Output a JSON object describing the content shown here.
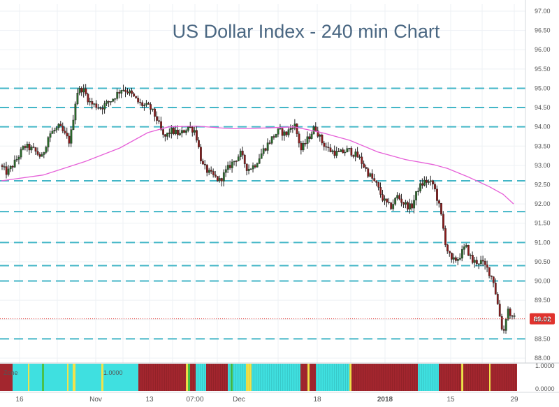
{
  "chart_data": {
    "type": "candlestick",
    "title": "US Dollar Index - 240 min Chart",
    "y_axis": {
      "ticks": [
        "97.00",
        "96.50",
        "96.00",
        "95.50",
        "95.00",
        "94.50",
        "94.00",
        "93.50",
        "93.00",
        "92.50",
        "92.00",
        "91.50",
        "91.00",
        "90.50",
        "90.00",
        "89.50",
        "89.00",
        "88.50",
        "88.00"
      ],
      "range": [
        88.0,
        97.0
      ],
      "position": "right"
    },
    "x_axis": {
      "ticks": [
        "16",
        "Nov",
        "13",
        "07:00",
        "Dec",
        "18",
        "2018",
        "15",
        "29"
      ]
    },
    "last_price": 89.02,
    "last_price_label": "89.02",
    "horizontal_levels": [
      95.0,
      94.5,
      94.0,
      92.6,
      91.8,
      91.0,
      90.4,
      90.0,
      88.5
    ],
    "price_path": [
      [
        0,
        93.0
      ],
      [
        10,
        92.8
      ],
      [
        22,
        93.1
      ],
      [
        35,
        93.5
      ],
      [
        48,
        93.4
      ],
      [
        60,
        93.2
      ],
      [
        70,
        93.8
      ],
      [
        85,
        94.0
      ],
      [
        100,
        93.6
      ],
      [
        110,
        94.9
      ],
      [
        118,
        95.0
      ],
      [
        130,
        94.6
      ],
      [
        145,
        94.5
      ],
      [
        160,
        94.7
      ],
      [
        175,
        95.0
      ],
      [
        185,
        94.9
      ],
      [
        200,
        94.6
      ],
      [
        215,
        94.5
      ],
      [
        225,
        94.2
      ],
      [
        235,
        93.7
      ],
      [
        245,
        93.9
      ],
      [
        258,
        93.8
      ],
      [
        270,
        94.0
      ],
      [
        280,
        93.9
      ],
      [
        290,
        93.0
      ],
      [
        300,
        92.8
      ],
      [
        315,
        92.6
      ],
      [
        330,
        93.0
      ],
      [
        345,
        93.3
      ],
      [
        355,
        92.9
      ],
      [
        365,
        93.0
      ],
      [
        378,
        93.4
      ],
      [
        390,
        93.7
      ],
      [
        400,
        93.9
      ],
      [
        410,
        93.8
      ],
      [
        422,
        94.1
      ],
      [
        432,
        93.4
      ],
      [
        442,
        93.7
      ],
      [
        452,
        94.0
      ],
      [
        462,
        93.6
      ],
      [
        472,
        93.4
      ],
      [
        485,
        93.3
      ],
      [
        500,
        93.4
      ],
      [
        515,
        93.2
      ],
      [
        528,
        92.8
      ],
      [
        540,
        92.5
      ],
      [
        550,
        92.1
      ],
      [
        560,
        91.9
      ],
      [
        570,
        92.2
      ],
      [
        580,
        92.0
      ],
      [
        590,
        91.9
      ],
      [
        600,
        92.4
      ],
      [
        610,
        92.6
      ],
      [
        622,
        92.5
      ],
      [
        632,
        91.8
      ],
      [
        640,
        90.9
      ],
      [
        648,
        90.5
      ],
      [
        658,
        90.6
      ],
      [
        668,
        90.9
      ],
      [
        678,
        90.5
      ],
      [
        690,
        90.5
      ],
      [
        700,
        90.3
      ],
      [
        708,
        90.0
      ],
      [
        715,
        89.3
      ],
      [
        722,
        88.6
      ],
      [
        728,
        89.3
      ],
      [
        735,
        89.02
      ]
    ],
    "moving_average": [
      [
        0,
        92.6
      ],
      [
        60,
        92.75
      ],
      [
        120,
        93.1
      ],
      [
        170,
        93.45
      ],
      [
        210,
        93.85
      ],
      [
        240,
        94.0
      ],
      [
        280,
        94.02
      ],
      [
        330,
        93.95
      ],
      [
        380,
        93.97
      ],
      [
        420,
        94.0
      ],
      [
        460,
        93.85
      ],
      [
        500,
        93.65
      ],
      [
        540,
        93.35
      ],
      [
        580,
        93.15
      ],
      [
        620,
        93.02
      ],
      [
        640,
        92.92
      ],
      [
        670,
        92.7
      ],
      [
        700,
        92.45
      ],
      [
        720,
        92.25
      ],
      [
        735,
        92.0
      ]
    ],
    "indicator": {
      "label": "Zone",
      "value_label": "1.0000",
      "y_ticks": [
        "1.0000",
        "0.0000"
      ]
    },
    "colors": {
      "up": "#2a6b2a",
      "down": "#8b1a1a",
      "level": "#43b6c7",
      "moving_average": "#e660d8",
      "last_price": "#e0332e",
      "title": "#4a6782",
      "zone_cyan": "#3fe0e0",
      "zone_red": "#a3262e",
      "zone_yellow": "#f2e24a",
      "zone_green": "#49c24a"
    }
  }
}
